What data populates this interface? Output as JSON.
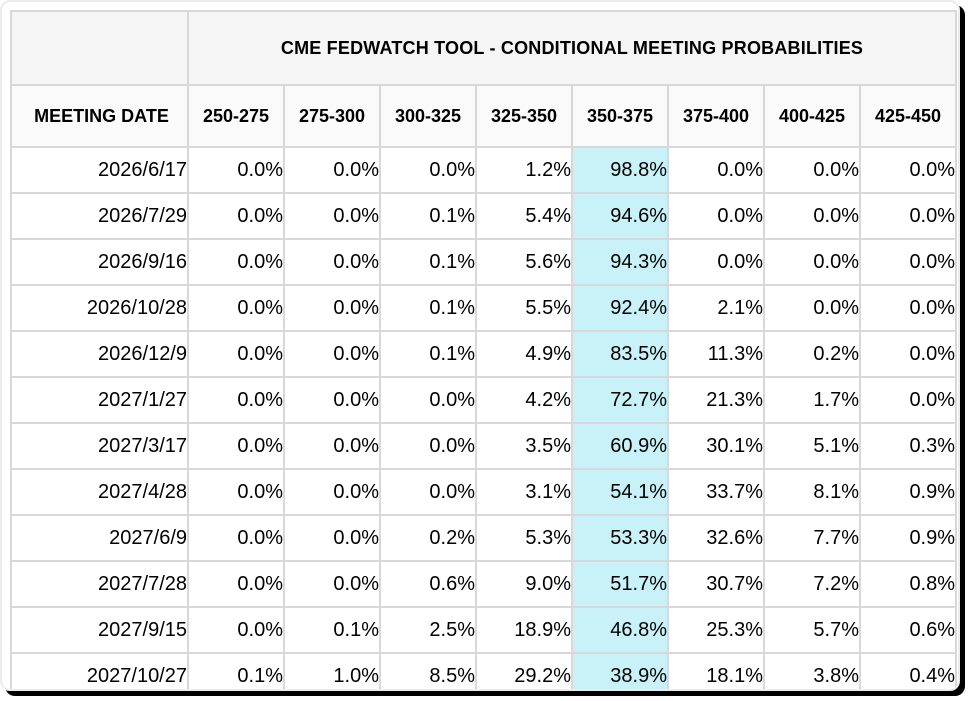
{
  "chart_data": {
    "type": "table",
    "title": "CME FEDWATCH TOOL - CONDITIONAL MEETING PROBABILITIES",
    "columns": [
      "MEETING DATE",
      "250-275",
      "275-300",
      "300-325",
      "325-350",
      "350-375",
      "375-400",
      "400-425",
      "425-450"
    ],
    "highlight_column": "350-375",
    "rows": [
      {
        "date": "2026/6/17",
        "values": [
          "0.0%",
          "0.0%",
          "0.0%",
          "1.2%",
          "98.8%",
          "0.0%",
          "0.0%",
          "0.0%"
        ]
      },
      {
        "date": "2026/7/29",
        "values": [
          "0.0%",
          "0.0%",
          "0.1%",
          "5.4%",
          "94.6%",
          "0.0%",
          "0.0%",
          "0.0%"
        ]
      },
      {
        "date": "2026/9/16",
        "values": [
          "0.0%",
          "0.0%",
          "0.1%",
          "5.6%",
          "94.3%",
          "0.0%",
          "0.0%",
          "0.0%"
        ]
      },
      {
        "date": "2026/10/28",
        "values": [
          "0.0%",
          "0.0%",
          "0.1%",
          "5.5%",
          "92.4%",
          "2.1%",
          "0.0%",
          "0.0%"
        ]
      },
      {
        "date": "2026/12/9",
        "values": [
          "0.0%",
          "0.0%",
          "0.1%",
          "4.9%",
          "83.5%",
          "11.3%",
          "0.2%",
          "0.0%"
        ]
      },
      {
        "date": "2027/1/27",
        "values": [
          "0.0%",
          "0.0%",
          "0.0%",
          "4.2%",
          "72.7%",
          "21.3%",
          "1.7%",
          "0.0%"
        ]
      },
      {
        "date": "2027/3/17",
        "values": [
          "0.0%",
          "0.0%",
          "0.0%",
          "3.5%",
          "60.9%",
          "30.1%",
          "5.1%",
          "0.3%"
        ]
      },
      {
        "date": "2027/4/28",
        "values": [
          "0.0%",
          "0.0%",
          "0.0%",
          "3.1%",
          "54.1%",
          "33.7%",
          "8.1%",
          "0.9%"
        ]
      },
      {
        "date": "2027/6/9",
        "values": [
          "0.0%",
          "0.0%",
          "0.2%",
          "5.3%",
          "53.3%",
          "32.6%",
          "7.7%",
          "0.9%"
        ]
      },
      {
        "date": "2027/7/28",
        "values": [
          "0.0%",
          "0.0%",
          "0.6%",
          "9.0%",
          "51.7%",
          "30.7%",
          "7.2%",
          "0.8%"
        ]
      },
      {
        "date": "2027/9/15",
        "values": [
          "0.0%",
          "0.1%",
          "2.5%",
          "18.9%",
          "46.8%",
          "25.3%",
          "5.7%",
          "0.6%"
        ]
      },
      {
        "date": "2027/10/27",
        "values": [
          "0.1%",
          "1.0%",
          "8.5%",
          "29.2%",
          "38.9%",
          "18.1%",
          "3.8%",
          "0.4%"
        ]
      }
    ]
  },
  "style": {
    "highlight_color": "#c9f1f8",
    "grid_color": "#d8d8d8",
    "title_bg": "#f5f5f5",
    "header_bg": "#fafafa",
    "frame_color": "#000000"
  }
}
